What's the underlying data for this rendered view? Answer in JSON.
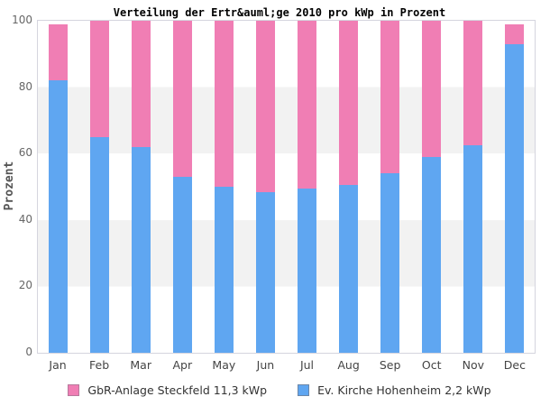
{
  "title": "Verteilung der Ertr&auml;ge 2010 pro kWp in Prozent",
  "y_axis": {
    "label": "Prozent",
    "ticks": [
      0,
      20,
      40,
      60,
      80,
      100
    ]
  },
  "colors": {
    "pink": "#f07eb4",
    "blue": "#5fa6f1",
    "pink_border": "#b7799c",
    "blue_border": "#6c87a8",
    "band_gray": "#f2f2f2",
    "frame": "#d5d5de"
  },
  "chart_data": {
    "type": "bar",
    "stacked": true,
    "title": "Verteilung der Ertr&auml;ge 2010 pro kWp in Prozent",
    "xlabel": "",
    "ylabel": "Prozent",
    "ylim": [
      0,
      100
    ],
    "grid": "horizontal-bands-every-20",
    "legend_position": "bottom",
    "categories": [
      "Jan",
      "Feb",
      "Mar",
      "Apr",
      "May",
      "Jun",
      "Jul",
      "Aug",
      "Sep",
      "Oct",
      "Nov",
      "Dec"
    ],
    "series": [
      {
        "name": "Ev. Kirche Hohenheim 2,2 kWp",
        "color": "#5fa6f1",
        "values": [
          82,
          65,
          62,
          53,
          50,
          48.5,
          49.5,
          50.5,
          54,
          59,
          62.5,
          93
        ]
      },
      {
        "name": "GbR-Anlage Steckfeld 11,3 kWp",
        "color": "#f07eb4",
        "values": [
          17,
          35,
          38,
          47,
          50,
          51.5,
          50.5,
          49.5,
          46,
          41,
          37.5,
          6
        ]
      }
    ],
    "totals": [
      99,
      100,
      100,
      100,
      100,
      100,
      100,
      100,
      100,
      100,
      100,
      99
    ]
  },
  "legend": {
    "items": [
      {
        "label": "GbR-Anlage Steckfeld 11,3 kWp",
        "color": "#f07eb4",
        "border": "#b7799c"
      },
      {
        "label": "Ev. Kirche Hohenheim 2,2 kWp",
        "color": "#5fa6f1",
        "border": "#6c87a8"
      }
    ]
  }
}
